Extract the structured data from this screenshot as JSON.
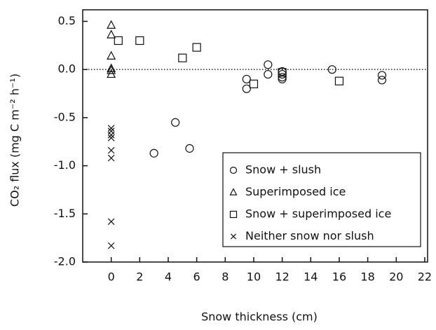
{
  "chart_data": {
    "type": "scatter",
    "x_label": "Snow thickness (cm)",
    "y_label": "CO₂ flux (mg C m⁻² h⁻¹)",
    "xlim": [
      -2,
      22.2
    ],
    "ylim": [
      -2,
      0.62
    ],
    "xticks": [
      0,
      2,
      4,
      6,
      8,
      10,
      12,
      14,
      16,
      18,
      20,
      22
    ],
    "yticks": [
      0.5,
      {
        "value": 0,
        "label": "0.0"
      },
      -0.5,
      {
        "value": -1,
        "label": "-1.0"
      },
      -1.5,
      {
        "value": -2,
        "label": "-2.0"
      }
    ],
    "zero_line": true,
    "legend": "lower right",
    "series": [
      {
        "name": "Snow + slush",
        "marker": "circle",
        "color": "#111",
        "x": [
          3,
          4.5,
          5.5,
          9.5,
          9.5,
          11,
          11,
          12,
          12,
          12,
          12,
          15.5,
          19,
          19
        ],
        "values": [
          -0.87,
          -0.55,
          -0.82,
          -0.1,
          -0.2,
          0.05,
          -0.05,
          -0.02,
          -0.05,
          -0.08,
          -0.1,
          0.0,
          -0.06,
          -0.11
        ]
      },
      {
        "name": "Superimposed ice",
        "marker": "triangle",
        "color": "#111",
        "x": [
          0,
          0,
          0,
          0,
          0,
          0
        ],
        "values": [
          0.46,
          0.36,
          0.14,
          0.01,
          -0.01,
          -0.05
        ]
      },
      {
        "name": "Snow + superimposed ice",
        "marker": "square",
        "color": "#111",
        "x": [
          0.5,
          2,
          5,
          6,
          10,
          12,
          16
        ],
        "values": [
          0.3,
          0.3,
          0.12,
          0.23,
          -0.15,
          -0.03,
          -0.12
        ]
      },
      {
        "name": "Neither snow nor slush",
        "marker": "cross",
        "color": "#111",
        "x": [
          0,
          0,
          0,
          0,
          0,
          0,
          0,
          0
        ],
        "values": [
          -0.61,
          -0.64,
          -0.68,
          -0.71,
          -0.84,
          -0.92,
          -1.58,
          -1.83
        ]
      }
    ]
  }
}
